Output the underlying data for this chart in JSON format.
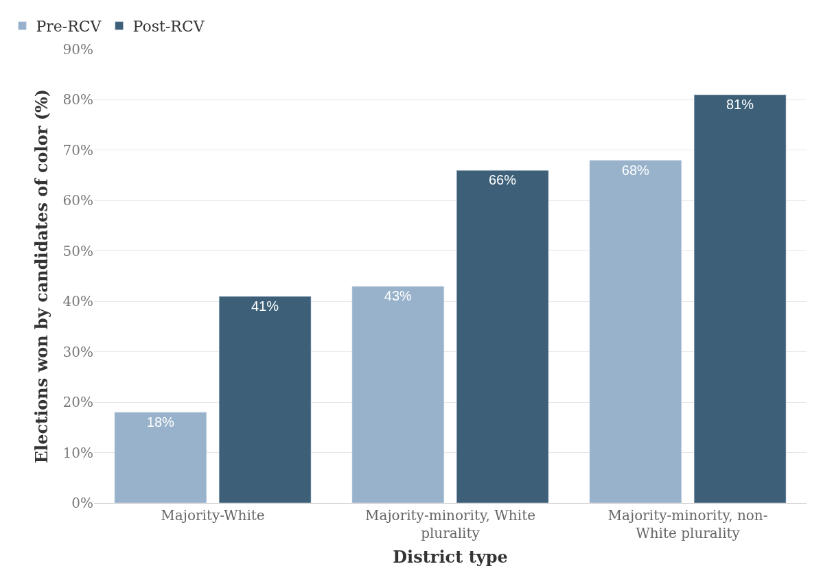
{
  "chart_data": {
    "type": "bar",
    "xlabel": "District type",
    "ylabel": "Elections won by candidates of color (%)",
    "categories": [
      "Majority-White",
      "Majority-minority, White plurality",
      "Majority-minority, non-White plurality"
    ],
    "series": [
      {
        "name": "Pre-RCV",
        "color": "#98b2cb",
        "values": [
          18,
          43,
          68
        ],
        "value_labels": [
          "18%",
          "43%",
          "68%"
        ]
      },
      {
        "name": "Post-RCV",
        "color": "#3d5f78",
        "values": [
          41,
          66,
          81
        ],
        "value_labels": [
          "41%",
          "66%",
          "81%"
        ]
      }
    ],
    "ylim": [
      0,
      90
    ],
    "yticks": [
      {
        "value": 0,
        "label": "0%"
      },
      {
        "value": 10,
        "label": "10%"
      },
      {
        "value": 20,
        "label": "20%"
      },
      {
        "value": 30,
        "label": "30%"
      },
      {
        "value": 40,
        "label": "40%"
      },
      {
        "value": 50,
        "label": "50%"
      },
      {
        "value": 60,
        "label": "60%"
      },
      {
        "value": 70,
        "label": "70%"
      },
      {
        "value": 80,
        "label": "80%"
      },
      {
        "value": 90,
        "label": "90%"
      }
    ],
    "grid": "y",
    "legend": "top left"
  }
}
